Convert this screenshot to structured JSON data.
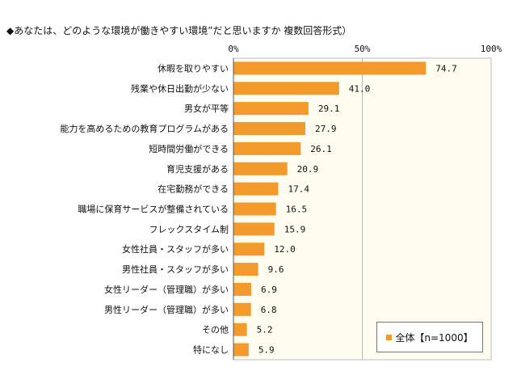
{
  "chart_data": {
    "type": "bar",
    "orientation": "horizontal",
    "title": "◆あなたは、どのような環境が働きやすい環境”だと思いますか 複数回答形式）",
    "categories": [
      "休暇を取りやすい",
      "残業や休日出勤が少ない",
      "男女が平等",
      "能力を高めるための教育プログラムがある",
      "短時間労働ができる",
      "育児支援がある",
      "在宅勤務ができる",
      "職場に保育サービスが整備されている",
      "フレックスタイム制",
      "女性社員・スタッフが多い",
      "男性社員・スタッフが多い",
      "女性リーダー（管理職）が多い",
      "男性リーダー（管理職）が多い",
      "その他",
      "特になし"
    ],
    "values": [
      74.7,
      41.0,
      29.1,
      27.9,
      26.1,
      20.9,
      17.4,
      16.5,
      15.9,
      12.0,
      9.6,
      6.9,
      6.8,
      5.2,
      5.9
    ],
    "value_labels": [
      "74.7",
      "41.0",
      "29.1",
      "27.9",
      "26.1",
      "20.9",
      "17.4",
      "16.5",
      "15.9",
      "12.0",
      "9.6",
      "6.9",
      "6.8",
      "5.2",
      "5.9"
    ],
    "xlim": [
      0,
      100
    ],
    "xticks": [
      "0%",
      "50%",
      "100%"
    ],
    "xtick_values": [
      0,
      50,
      100
    ],
    "legend": {
      "label": "全体【n=1000】",
      "placement": "bottom-right"
    },
    "series_color": "#f39a2c"
  }
}
